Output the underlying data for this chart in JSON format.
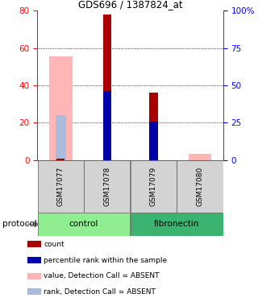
{
  "title": "GDS696 / 1387824_at",
  "samples": [
    "GSM17077",
    "GSM17078",
    "GSM17079",
    "GSM17080"
  ],
  "ylim_left": [
    0,
    80
  ],
  "ylim_right": [
    0,
    100
  ],
  "yticks_left": [
    0,
    20,
    40,
    60,
    80
  ],
  "yticks_right": [
    0,
    25,
    50,
    75,
    100
  ],
  "ytick_labels_right": [
    "0",
    "25",
    "50",
    "75",
    "100%"
  ],
  "absent_value_bars": [
    55.5,
    0,
    0,
    3.5
  ],
  "absent_rank_bars_pct": [
    30,
    0,
    0,
    0
  ],
  "count_bars": [
    0.8,
    78,
    36,
    0
  ],
  "rank_bars_pct": [
    0,
    46,
    25.5,
    0
  ],
  "color_count": "#AA0000",
  "color_rank": "#0000AA",
  "color_absent_value": "#FFB6B6",
  "color_absent_rank": "#AABBDD",
  "bg_label": "#d3d3d3",
  "bg_group_control": "#90EE90",
  "bg_group_fibronectin": "#3CB371",
  "legend_items": [
    {
      "color": "#AA0000",
      "label": "count"
    },
    {
      "color": "#0000AA",
      "label": "percentile rank within the sample"
    },
    {
      "color": "#FFB6B6",
      "label": "value, Detection Call = ABSENT"
    },
    {
      "color": "#AABBDD",
      "label": "rank, Detection Call = ABSENT"
    }
  ]
}
